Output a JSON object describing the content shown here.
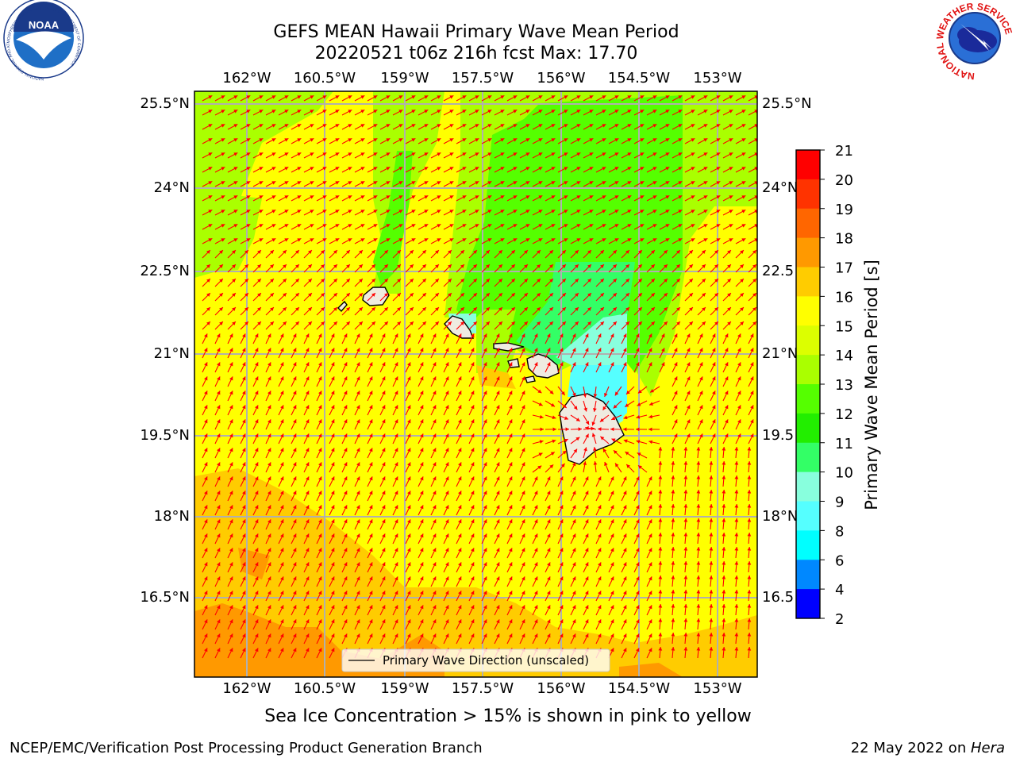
{
  "header": {
    "title_line1": "GEFS MEAN Hawaii Primary Wave Mean Period",
    "title_line2": "20220521 t06z 216h fcst   Max: 17.70"
  },
  "logos": {
    "left": {
      "name": "NOAA",
      "ring_text": "NATIONAL OCEANIC AND ATMOSPHERIC ADMINISTRATION · U.S. DEPARTMENT OF COMMERCE"
    },
    "right": {
      "ring_text": "NATIONAL WEATHER SERVICE"
    }
  },
  "map": {
    "lon_labels": [
      "162°W",
      "160.5°W",
      "159°W",
      "157.5°W",
      "156°W",
      "154.5°W",
      "153°W"
    ],
    "lat_labels_left": [
      "25.5°N",
      "24°N",
      "22.5°N",
      "21°N",
      "19.5°N",
      "18°N",
      "16.5°N"
    ],
    "lat_labels_right": [
      "25.5°N",
      "24°N",
      "22.5",
      "21°N",
      "19.5",
      "18°N",
      "16.5"
    ],
    "legend_text": "Primary Wave Direction (unscaled)",
    "arrow_color": "#ff0000",
    "land_color": "#efebe0",
    "gridline_color": "#b0b0b0"
  },
  "colorbar": {
    "label": "Primary Wave Mean Period [s]",
    "ticks": [
      "21",
      "20",
      "19",
      "18",
      "17",
      "16",
      "15",
      "14",
      "13",
      "12",
      "11",
      "10",
      "9",
      "8",
      "6",
      "4",
      "2"
    ],
    "colors": [
      "#ff0000",
      "#ff3300",
      "#ff6600",
      "#ff9900",
      "#ffcc00",
      "#ffff00",
      "#dcff00",
      "#aaff00",
      "#55ff00",
      "#22ee00",
      "#33ff66",
      "#88ffdd",
      "#55ffff",
      "#00ffff",
      "#0088ff",
      "#0000ff"
    ]
  },
  "caption": "Sea Ice Concentration > 15% is shown in pink to yellow",
  "footer": {
    "left": "NCEP/EMC/Verification Post Processing Product Generation Branch",
    "right_date": "22 May 2022 on ",
    "right_host": "Hera"
  }
}
